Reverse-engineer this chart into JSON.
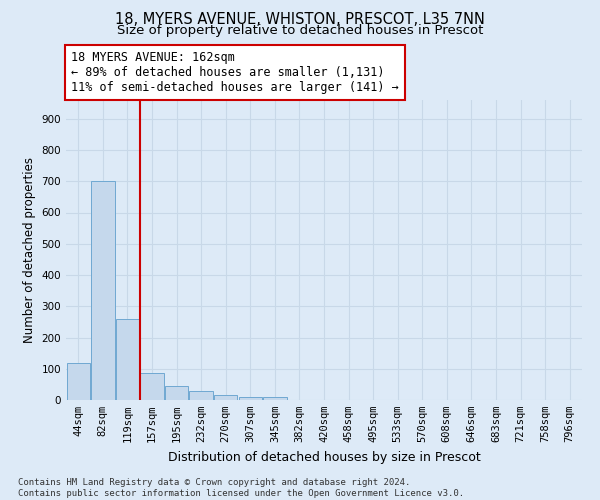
{
  "title1": "18, MYERS AVENUE, WHISTON, PRESCOT, L35 7NN",
  "title2": "Size of property relative to detached houses in Prescot",
  "xlabel": "Distribution of detached houses by size in Prescot",
  "ylabel": "Number of detached properties",
  "footnote": "Contains HM Land Registry data © Crown copyright and database right 2024.\nContains public sector information licensed under the Open Government Licence v3.0.",
  "bar_labels": [
    "44sqm",
    "82sqm",
    "119sqm",
    "157sqm",
    "195sqm",
    "232sqm",
    "270sqm",
    "307sqm",
    "345sqm",
    "382sqm",
    "420sqm",
    "458sqm",
    "495sqm",
    "533sqm",
    "570sqm",
    "608sqm",
    "646sqm",
    "683sqm",
    "721sqm",
    "758sqm",
    "796sqm"
  ],
  "bar_heights": [
    120,
    700,
    260,
    85,
    45,
    30,
    15,
    10,
    10,
    0,
    0,
    0,
    0,
    0,
    0,
    0,
    0,
    0,
    0,
    0,
    0
  ],
  "bar_color": "#c5d8ec",
  "bar_edge_color": "#6fa8d2",
  "vline_color": "#cc0000",
  "vline_index": 2.5,
  "annotation_text": "18 MYERS AVENUE: 162sqm\n← 89% of detached houses are smaller (1,131)\n11% of semi-detached houses are larger (141) →",
  "annotation_box_color": "white",
  "annotation_box_edge": "#cc0000",
  "ylim": [
    0,
    960
  ],
  "yticks": [
    0,
    100,
    200,
    300,
    400,
    500,
    600,
    700,
    800,
    900
  ],
  "grid_color": "#c8d8e8",
  "bg_color": "#ddeaf7",
  "title1_fontsize": 10.5,
  "title2_fontsize": 9.5,
  "xlabel_fontsize": 9,
  "ylabel_fontsize": 8.5,
  "tick_fontsize": 7.5,
  "annotation_fontsize": 8.5
}
